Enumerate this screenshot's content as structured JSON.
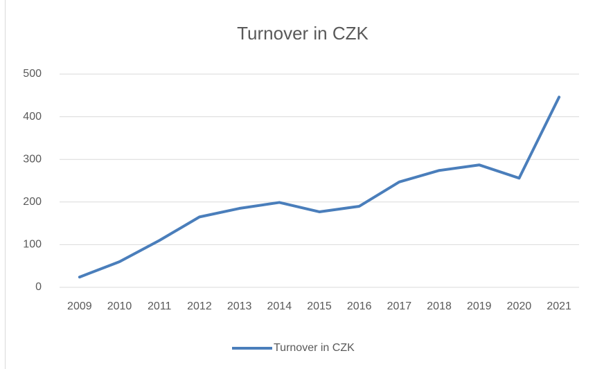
{
  "chart_data": {
    "type": "line",
    "title": "Turnover in CZK",
    "categories": [
      "2009",
      "2010",
      "2011",
      "2012",
      "2013",
      "2014",
      "2015",
      "2016",
      "2017",
      "2018",
      "2019",
      "2020",
      "2021"
    ],
    "series": [
      {
        "name": "Turnover in CZK",
        "color": "#4a7ebb",
        "values": [
          24,
          60,
          110,
          165,
          185,
          199,
          177,
          190,
          247,
          274,
          287,
          256,
          446
        ]
      }
    ],
    "ylim": [
      0,
      500
    ],
    "yticks": [
      0,
      100,
      200,
      300,
      400,
      500
    ],
    "grid": true,
    "legend": "bottom"
  }
}
